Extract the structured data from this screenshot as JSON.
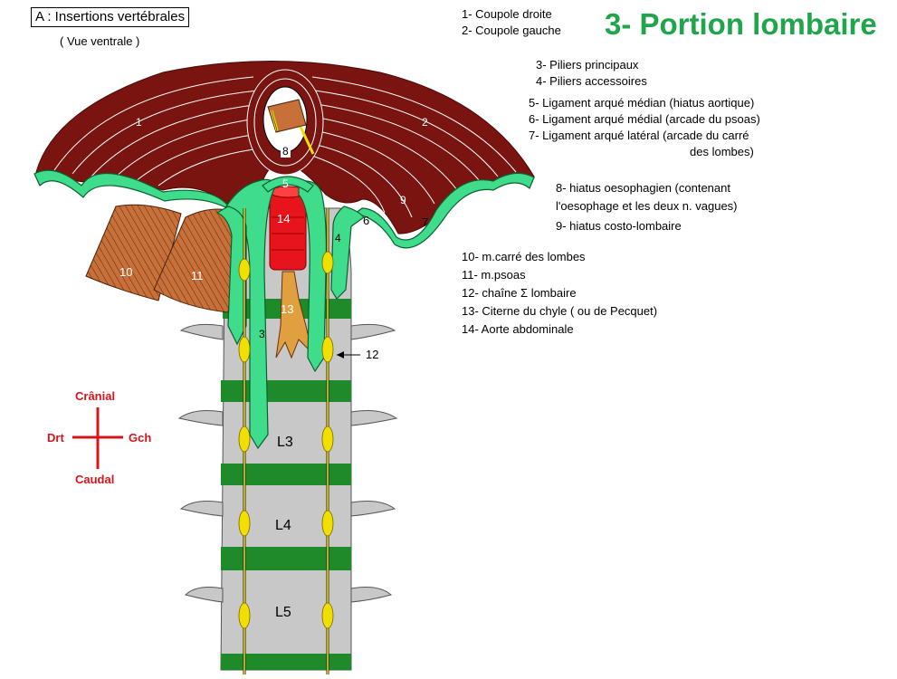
{
  "header": {
    "box_title": "A : Insertions vertébrales",
    "subtitle": "( Vue ventrale )",
    "main_title": "3- Portion lombaire"
  },
  "legend": {
    "l1": "1- Coupole droite",
    "l2": "2- Coupole gauche",
    "l3": "3- Piliers principaux",
    "l4": "4- Piliers accessoires",
    "l5": "5- Ligament arqué médian  (hiatus aortique)",
    "l6": "6- Ligament arqué médial   (arcade du psoas)",
    "l7a": "7- Ligament arqué latéral    (arcade du carré",
    "l7b": "des lombes)",
    "l8a": "8- hiatus oesophagien (contenant",
    "l8b": "l'oesophage et les deux n. vagues)",
    "l9": "9- hiatus costo-lombaire",
    "l10": "10- m.carré des lombes",
    "l11": "11- m.psoas",
    "l12": "12- chaîne Σ lombaire",
    "l13": "13- Citerne du chyle ( ou de Pecquet)",
    "l14": "14- Aorte abdominale"
  },
  "compass": {
    "top": "Crânial",
    "bottom": "Caudal",
    "left": "Drt",
    "right": "Gch"
  },
  "figure": {
    "n1": "1",
    "n2": "2",
    "n3": "3",
    "n4": "4",
    "n5": "5",
    "n6": "6",
    "n7": "7",
    "n8": "8",
    "n9": "9",
    "n10": "10",
    "n11": "11",
    "n12": "12",
    "n13": "13",
    "n14": "14",
    "vL3": "L3",
    "vL4": "L4",
    "vL5": "L5"
  },
  "colors": {
    "title_green": "#1fa64a",
    "muscle": "#7a1410",
    "tendon": "#3fdc8c",
    "vertebra": "#c8c8c8",
    "disc": "#1f8a2a",
    "aorta": "#e8141b",
    "psoas": "#c8703a",
    "sympathetic": "#f0e000",
    "compass": "#d8141b"
  }
}
